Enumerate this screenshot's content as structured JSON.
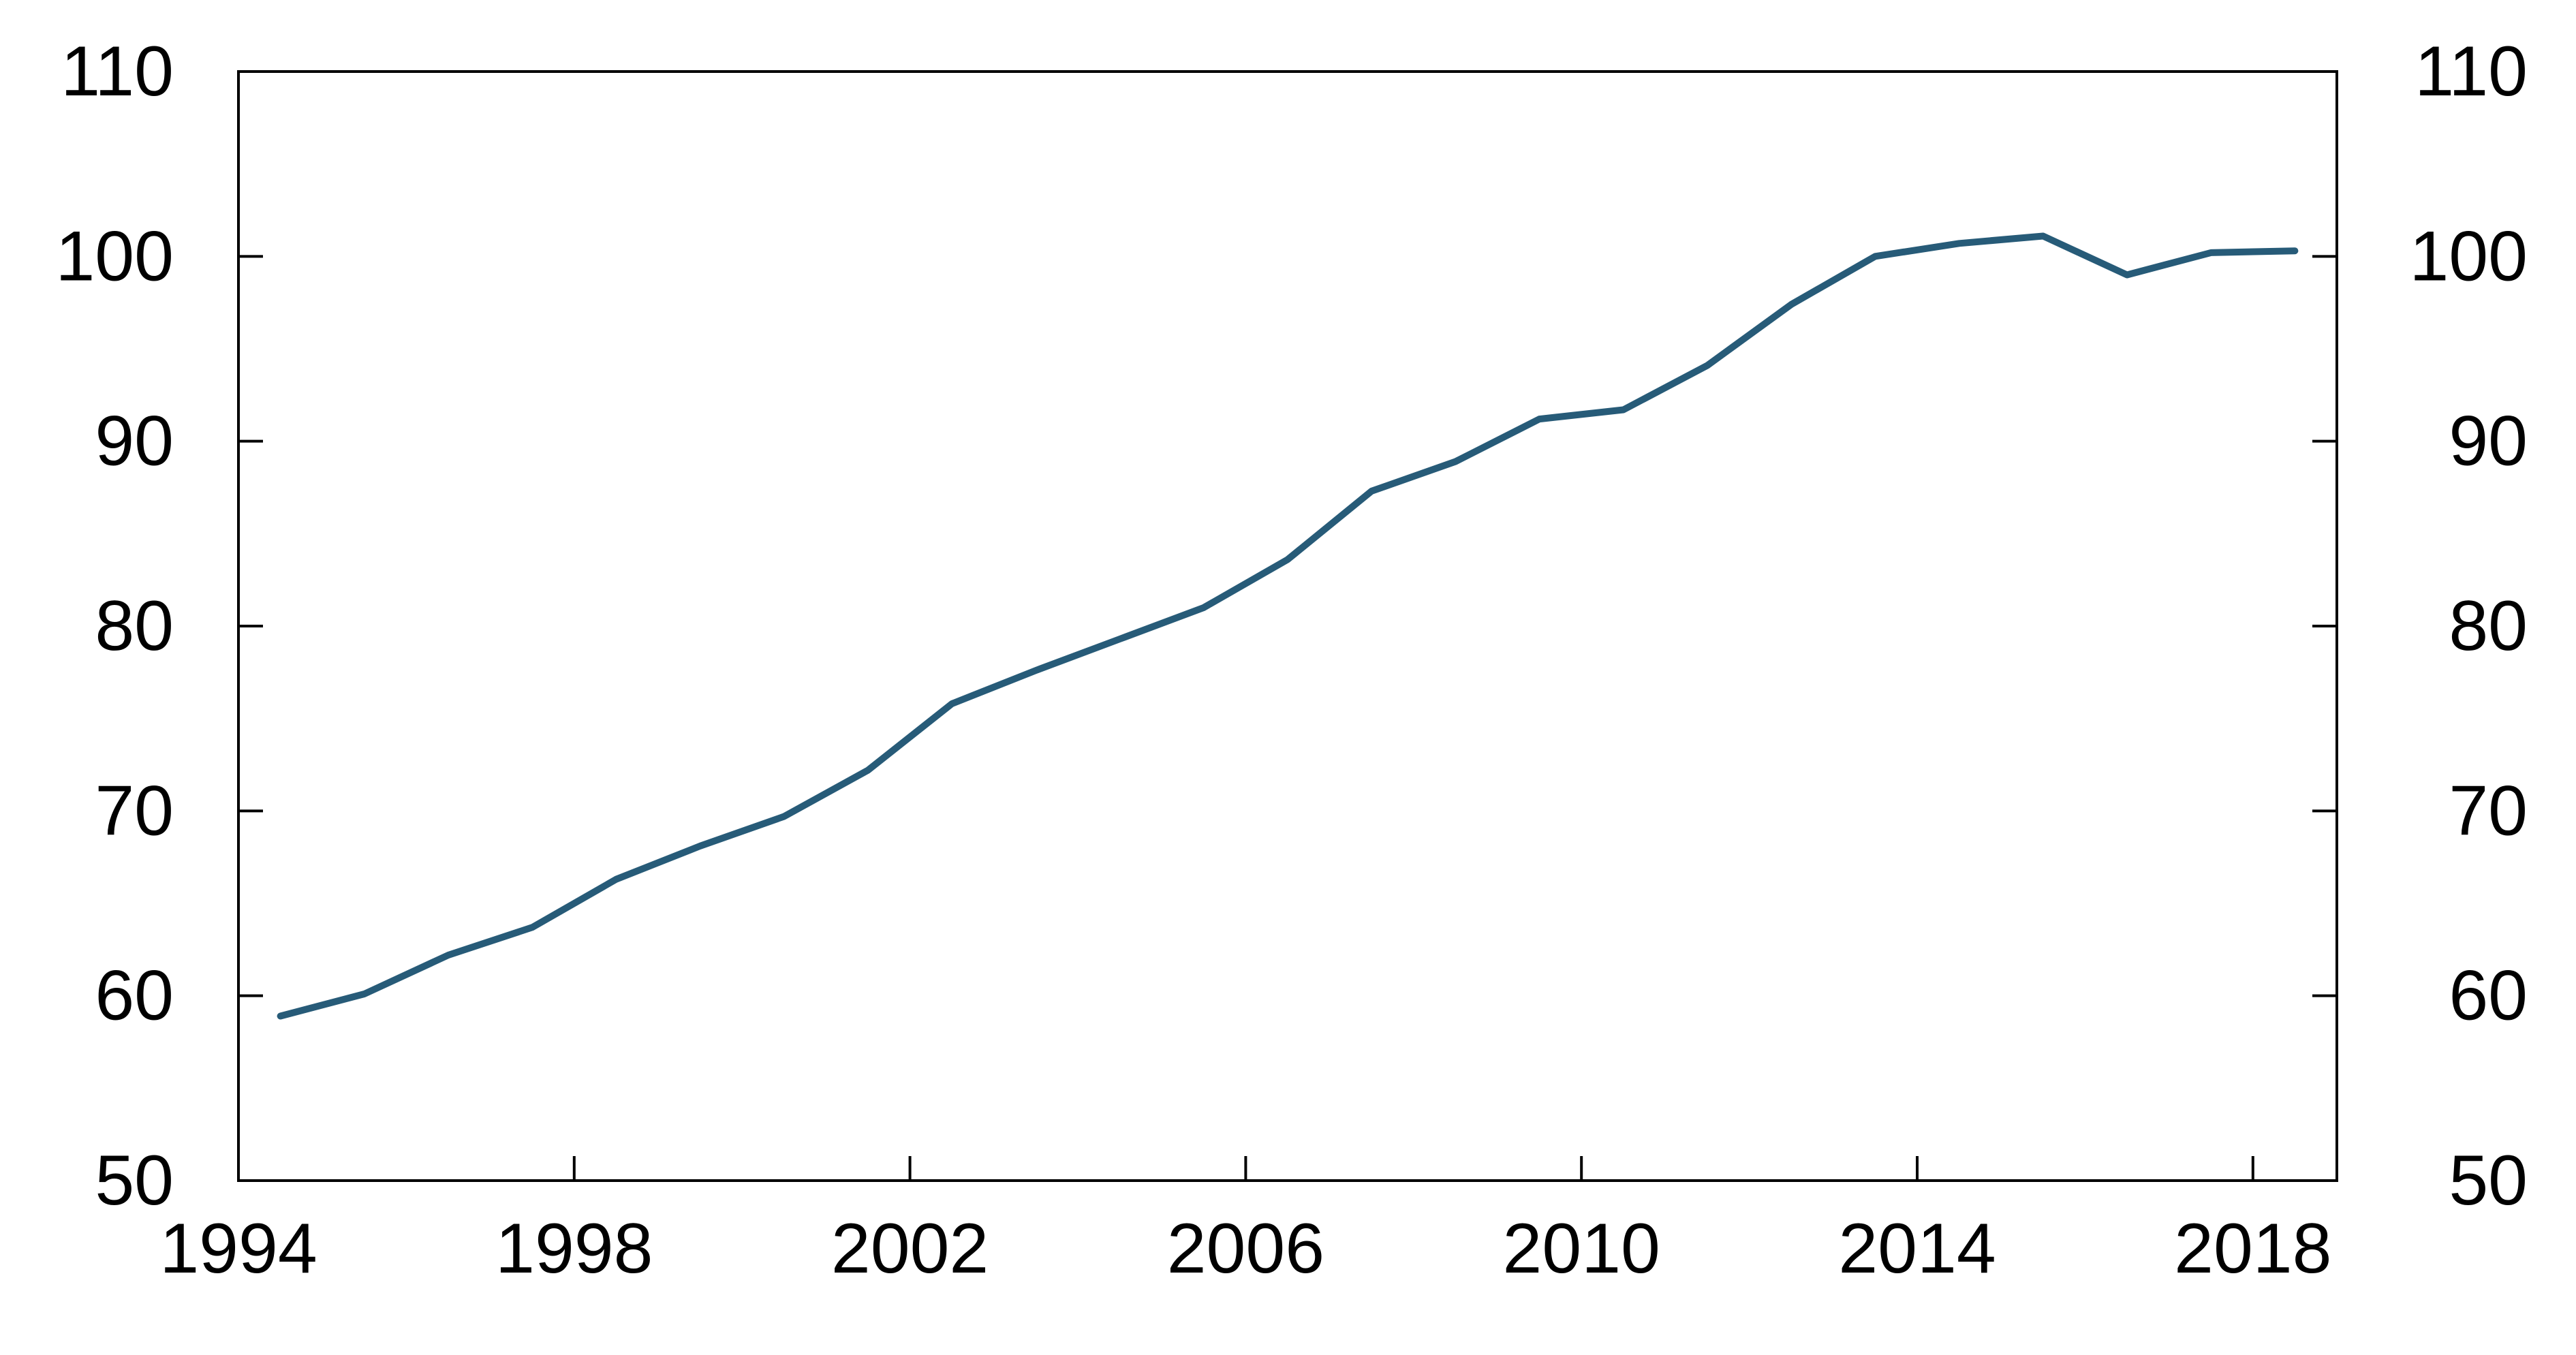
{
  "chart_data": {
    "type": "line",
    "title": "",
    "xlabel": "",
    "ylabel": "",
    "xlim": [
      1994,
      2019
    ],
    "ylim": [
      50,
      110
    ],
    "y_ticks": [
      50,
      60,
      70,
      80,
      90,
      100,
      110
    ],
    "x_ticks": [
      1994,
      1998,
      2002,
      2006,
      2010,
      2014,
      2018
    ],
    "secondary_y_axis": true,
    "grid": false,
    "legend": "none",
    "series_color": "#275b78",
    "series": [
      {
        "x": [
          1994.5,
          1995.5,
          1996.5,
          1997.5,
          1998.5,
          1999.5,
          2000.5,
          2001.5,
          2002.5,
          2003.5,
          2004.5,
          2005.5,
          2006.5,
          2007.5,
          2008.5,
          2009.5,
          2010.5,
          2011.5,
          2012.5,
          2013.5,
          2014.5,
          2015.5,
          2016.5,
          2017.5,
          2018.5
        ],
        "values": [
          58.9,
          60.1,
          62.2,
          63.7,
          66.3,
          68.1,
          69.7,
          72.2,
          75.8,
          77.6,
          79.3,
          81.0,
          83.6,
          87.3,
          88.9,
          91.2,
          91.7,
          94.1,
          97.4,
          100.0,
          100.7,
          101.1,
          99.0,
          100.2,
          100.3
        ]
      }
    ]
  }
}
